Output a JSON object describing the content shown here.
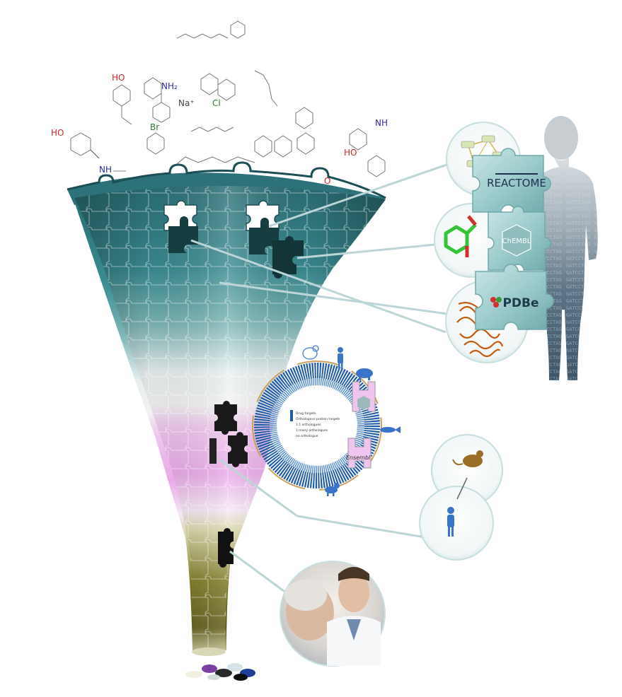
{
  "molecules": {
    "hydroxyl_label": "HO",
    "amine_label": "NH",
    "amino_label": "NH₂",
    "oxygen_label": "O",
    "chlorine_label": "Cl",
    "bromine_label": "Br",
    "sodium_label": "Na⁺"
  },
  "databases": {
    "reactome": "REACTOME",
    "chembl": "ChEMBL",
    "pdbe": "PDBe",
    "ensembl": "Ensembl"
  },
  "circular_legend": {
    "entries": [
      "Drug targets",
      "Orthologous protein targets",
      "1:1 orthologues",
      "1:many orthologues",
      "no orthologue"
    ]
  },
  "colors": {
    "teal": "#2f7f85",
    "teal_light": "#9cc9c9",
    "pink": "#e7a6e6",
    "olive": "#6f6a1c",
    "puzzle_piece": "#a8d2d3",
    "circle_blue": "#1f5aa6",
    "human_blue": "#3a74c8",
    "rat_brown": "#9b6e28",
    "protein_orange": "#c65a0f",
    "molecule_green": "#37c43a"
  },
  "icons": {
    "human": "human-silhouette-icon",
    "pig": "pig-icon",
    "fish": "fish-icon",
    "dog": "dog-icon",
    "mouse": "mouse-icon",
    "rat": "rat-icon",
    "pills": "pills-icon"
  }
}
